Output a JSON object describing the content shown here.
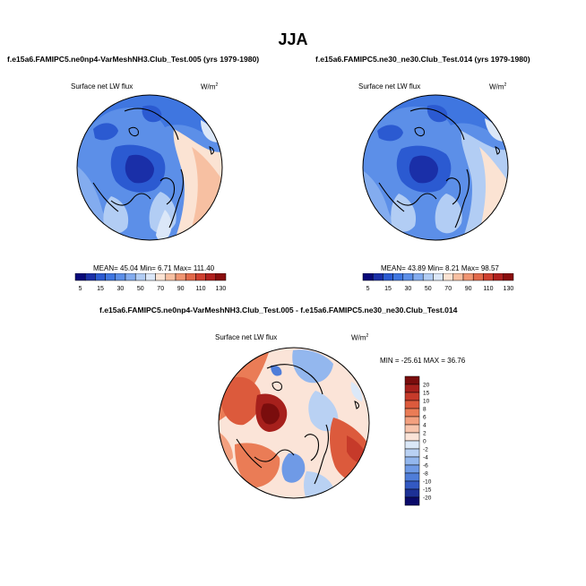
{
  "page": {
    "season": "JJA"
  },
  "panels": [
    {
      "case_title": "f.e15a6.FAMIPC5.ne0np4-VarMeshNH3.Club_Test.005 (yrs 1979-1980)",
      "field_label": "Surface net LW flux",
      "units": "W/m",
      "units_sup": "2",
      "stats_text": "MEAN=  45.04  Min=   6.71  Max=  111.40"
    },
    {
      "case_title": "f.e15a6.FAMIPC5.ne30_ne30.Club_Test.014 (yrs 1979-1980)",
      "field_label": "Surface net LW flux",
      "units": "W/m",
      "units_sup": "2",
      "stats_text": "MEAN=  43.89  Min=   8.21  Max=  98.57"
    }
  ],
  "diff_panel": {
    "case_title": "f.e15a6.FAMIPC5.ne0np4-VarMeshNH3.Club_Test.005 - f.e15a6.FAMIPC5.ne30_ne30.Club_Test.014",
    "field_label": "Surface net LW flux",
    "units": "W/m",
    "units_sup": "2",
    "stats_text": "MIN = -25.61 MAX =  36.76"
  },
  "chart_data": [
    {
      "type": "heatmap",
      "projection": "polar stereographic (North Pole)",
      "title": "f.e15a6.FAMIPC5.ne0np4-VarMeshNH3.Club_Test.005 (yrs 1979-1980)",
      "variable": "Surface net LW flux",
      "stats": {
        "mean": 45.04,
        "min": 6.71,
        "max": 111.4
      },
      "colorbar_ticks": [
        "5",
        "15",
        "30",
        "50",
        "70",
        "90",
        "110",
        "130"
      ],
      "colorbar_levels": [
        5,
        10,
        15,
        20,
        30,
        40,
        50,
        60,
        70,
        80,
        90,
        100,
        110,
        120,
        130
      ],
      "colorbar_orientation": "horizontal"
    },
    {
      "type": "heatmap",
      "projection": "polar stereographic (North Pole)",
      "title": "f.e15a6.FAMIPC5.ne30_ne30.Club_Test.014 (yrs 1979-1980)",
      "variable": "Surface net LW flux",
      "stats": {
        "mean": 43.89,
        "min": 8.21,
        "max": 98.57
      },
      "colorbar_ticks": [
        "5",
        "15",
        "30",
        "50",
        "70",
        "90",
        "110",
        "130"
      ],
      "colorbar_levels": [
        5,
        10,
        15,
        20,
        30,
        40,
        50,
        60,
        70,
        80,
        90,
        100,
        110,
        120,
        130
      ],
      "colorbar_orientation": "horizontal"
    },
    {
      "type": "heatmap",
      "projection": "polar stereographic (North Pole)",
      "title": "f.e15a6.FAMIPC5.ne0np4-VarMeshNH3.Club_Test.005 - f.e15a6.FAMIPC5.ne30_ne30.Club_Test.014",
      "variable": "Surface net LW flux",
      "stats": {
        "min": -25.61,
        "max": 36.76
      },
      "colorbar_ticks": [
        "20",
        "15",
        "10",
        "8",
        "6",
        "4",
        "2",
        "0",
        "-2",
        "-4",
        "-6",
        "-8",
        "-10",
        "-15",
        "-20"
      ],
      "colorbar_orientation": "vertical"
    }
  ],
  "colors": {
    "abs_scale": [
      "#08087a",
      "#1a2fa8",
      "#2b5ad1",
      "#3f76e0",
      "#5c8fe8",
      "#83acef",
      "#b2cdf4",
      "#dbe7f8",
      "#fbe3d3",
      "#f7c0a2",
      "#f09572",
      "#e2694a",
      "#cf4030",
      "#b0201e",
      "#8a0d0d"
    ],
    "diff_scale": [
      "#7a0d0d",
      "#a6201c",
      "#c63a2a",
      "#dc5a3c",
      "#ea7c56",
      "#f3a07f",
      "#f8c4ac",
      "#fbe4d8",
      "#dbe8f8",
      "#b9d1f3",
      "#93b7ee",
      "#6f9ae6",
      "#4f7dd9",
      "#3359c2",
      "#1d3196",
      "#0a0a6a"
    ]
  }
}
